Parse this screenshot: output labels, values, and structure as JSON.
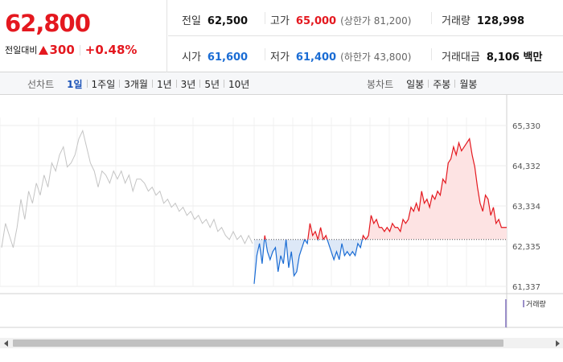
{
  "quote": {
    "current_price": "62,800",
    "change_label": "전일대비",
    "change_amount": "300",
    "change_percent": "+0.48%"
  },
  "stats": {
    "prev_close": {
      "label": "전일",
      "value": "62,500"
    },
    "high": {
      "label": "고가",
      "value": "65,000",
      "sub": "(상한가 81,200)"
    },
    "volume": {
      "label": "거래량",
      "value": "128,998"
    },
    "open": {
      "label": "시가",
      "value": "61,600"
    },
    "low": {
      "label": "저가",
      "value": "61,400",
      "sub": "(하한가 43,800)"
    },
    "amount": {
      "label": "거래대금",
      "value": "8,106 백만"
    }
  },
  "toolbar": {
    "line_chart_label": "선차트",
    "periods": [
      "1일",
      "1주일",
      "3개월",
      "1년",
      "3년",
      "5년",
      "10년"
    ],
    "active_period": "1일",
    "candle_chart_label": "봉차트",
    "candle_periods": [
      "일봉",
      "주봉",
      "월봉"
    ]
  },
  "chart_data": {
    "type": "line",
    "title": "",
    "xlabel": "",
    "ylabel": "",
    "ylim": [
      61337,
      65330
    ],
    "y_ticks": [
      "65,330",
      "64,332",
      "63,334",
      "62,335",
      "61,337"
    ],
    "baseline": 62500,
    "grid": true,
    "volume_legend": "거래량",
    "colors": {
      "previous_day": "#c4c4c4",
      "up": "#e4181f",
      "down": "#1a6cd4",
      "up_fill": "#fde3e3",
      "down_fill": "#dde8f7"
    },
    "series": [
      {
        "role": "previous_day",
        "values": [
          62300,
          62900,
          62600,
          62300,
          62800,
          63500,
          63000,
          63700,
          63400,
          63900,
          63600,
          64100,
          63800,
          64400,
          64200,
          64600,
          64800,
          64300,
          64400,
          64600,
          65000,
          65200,
          64800,
          64400,
          64200,
          63800,
          64200,
          64100,
          63900,
          64200,
          64000,
          64200,
          63900,
          64100,
          63700,
          64000,
          64000,
          63900,
          63700,
          63800,
          63600,
          63700,
          63400,
          63500,
          63300,
          63400,
          63200,
          63300,
          63100,
          63200,
          63000,
          63100,
          62900,
          63000,
          62800,
          63000,
          62700,
          62800,
          62600,
          62500,
          62700,
          62500,
          62600,
          62400,
          62600,
          62400
        ]
      },
      {
        "role": "today",
        "values": [
          61400,
          62100,
          62400,
          61900,
          62600,
          62200,
          62000,
          62200,
          62300,
          61700,
          62100,
          61900,
          62500,
          61800,
          62200,
          61600,
          61700,
          62100,
          62300,
          62500,
          62400,
          62900,
          62600,
          62700,
          62500,
          62800,
          62500,
          62600,
          62400,
          62200,
          62000,
          62200,
          62000,
          62400,
          62100,
          62200,
          62100,
          62200,
          62100,
          62400,
          62300,
          62600,
          62500,
          62600,
          63100,
          62900,
          63000,
          62800,
          62800,
          62700,
          62800,
          62700,
          62900,
          62800,
          62800,
          62700,
          63000,
          62900,
          63000,
          63300,
          63200,
          63400,
          63200,
          63700,
          63400,
          63500,
          63300,
          63600,
          63500,
          63700,
          63600,
          64000,
          63900,
          64400,
          64500,
          64800,
          64600,
          64900,
          64700,
          64800,
          64900,
          65000,
          64600,
          64300,
          63800,
          63400,
          63200,
          63600,
          63500,
          63100,
          63300,
          62900,
          63000,
          62800,
          62800,
          62800
        ]
      }
    ]
  }
}
